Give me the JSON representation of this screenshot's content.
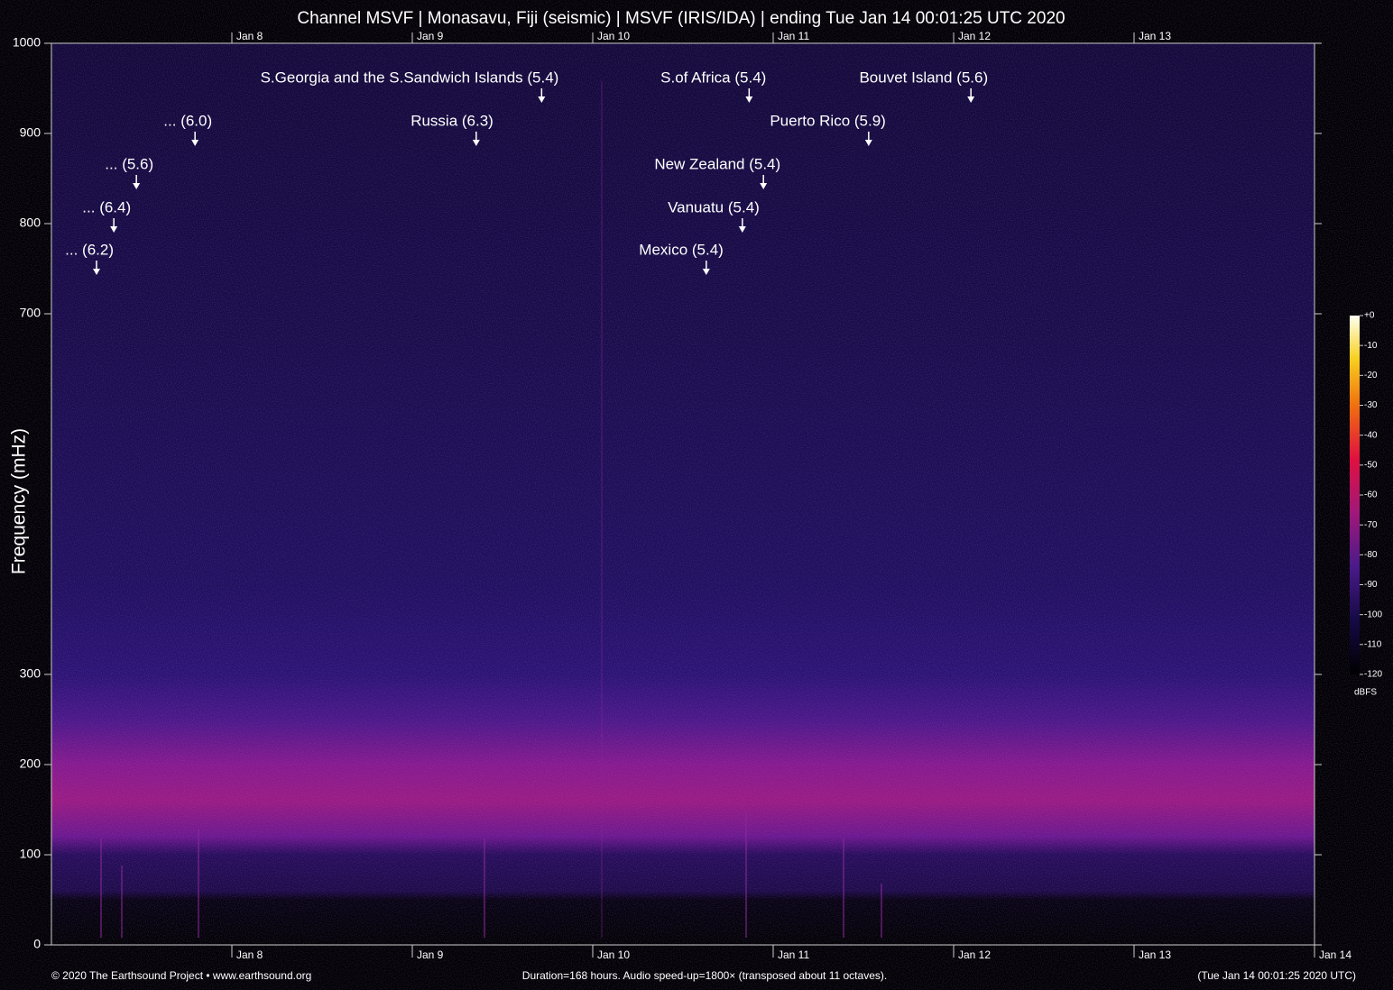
{
  "chart_data": {
    "type": "spectrogram",
    "title": "Channel MSVF | Monasavu, Fiji (seismic) | MSVF (IRIS/IDA) | ending Tue Jan 14 00:01:25 UTC 2020",
    "y_label": "Frequency (mHz)",
    "xlim": [
      0,
      168
    ],
    "xticks": [
      {
        "value": 24,
        "label": "Jan  8"
      },
      {
        "value": 48,
        "label": "Jan  9"
      },
      {
        "value": 72,
        "label": "Jan 10"
      },
      {
        "value": 96,
        "label": "Jan 11"
      },
      {
        "value": 120,
        "label": "Jan 12"
      },
      {
        "value": 144,
        "label": "Jan 13"
      },
      {
        "value": 168,
        "label": "Jan 14"
      }
    ],
    "ylim": [
      0,
      1000
    ],
    "yticks": [
      0,
      100,
      200,
      300,
      700,
      800,
      900,
      1000
    ],
    "annotations": [
      {
        "text": "... (6.2)",
        "xy": [
          6.0,
          743
        ]
      },
      {
        "text": "... (6.4)",
        "xy": [
          8.3,
          790
        ]
      },
      {
        "text": "... (5.6)",
        "xy": [
          11.3,
          838
        ]
      },
      {
        "text": "... (6.0)",
        "xy": [
          19.1,
          886
        ]
      },
      {
        "text": "Russia (6.3)",
        "xy": [
          56.5,
          886
        ]
      },
      {
        "text": "S.Georgia and the S.Sandwich Islands (5.4)",
        "xy": [
          65.2,
          934
        ]
      },
      {
        "text": "Mexico (5.4)",
        "xy": [
          87.1,
          743
        ]
      },
      {
        "text": "Vanuatu (5.4)",
        "xy": [
          91.9,
          790
        ]
      },
      {
        "text": "S.of Africa (5.4)",
        "xy": [
          92.8,
          934
        ]
      },
      {
        "text": "New Zealand (5.4)",
        "xy": [
          94.7,
          838
        ]
      },
      {
        "text": "Puerto Rico (5.9)",
        "xy": [
          108.7,
          886
        ]
      },
      {
        "text": "Bouvet Island (5.6)",
        "xy": [
          122.3,
          934
        ]
      }
    ],
    "colorbar": {
      "label": "dBFS",
      "lim": [
        -120,
        0
      ],
      "ticks": [
        {
          "value": 0,
          "label": "+0"
        },
        -10,
        -20,
        -30,
        -40,
        -50,
        -60,
        -70,
        -80,
        -90,
        -100,
        -110,
        -120
      ]
    },
    "footer_left": "© 2020 The Earthsound Project • www.earthsound.org",
    "footer_center": "Duration=168 hours. Audio speed-up=1800× (transposed about 11 octaves).",
    "footer_right": "(Tue Jan 14 00:01:25 2020 UTC)"
  }
}
